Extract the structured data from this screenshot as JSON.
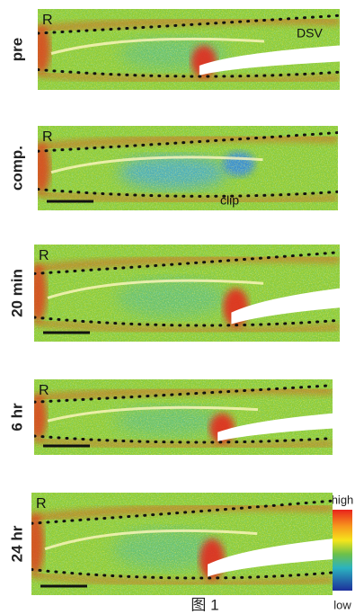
{
  "figure": {
    "panels": [
      {
        "label": "pre",
        "marker": "R",
        "annotation": "DSV"
      },
      {
        "label": "comp.",
        "marker": "R",
        "annotation": "clip"
      },
      {
        "label": "20 min",
        "marker": "R"
      },
      {
        "label": "6 hr",
        "marker": "R"
      },
      {
        "label": "24 hr",
        "marker": "R"
      }
    ],
    "colorbar": {
      "high": "high",
      "low": "low"
    },
    "caption": "图 1"
  }
}
